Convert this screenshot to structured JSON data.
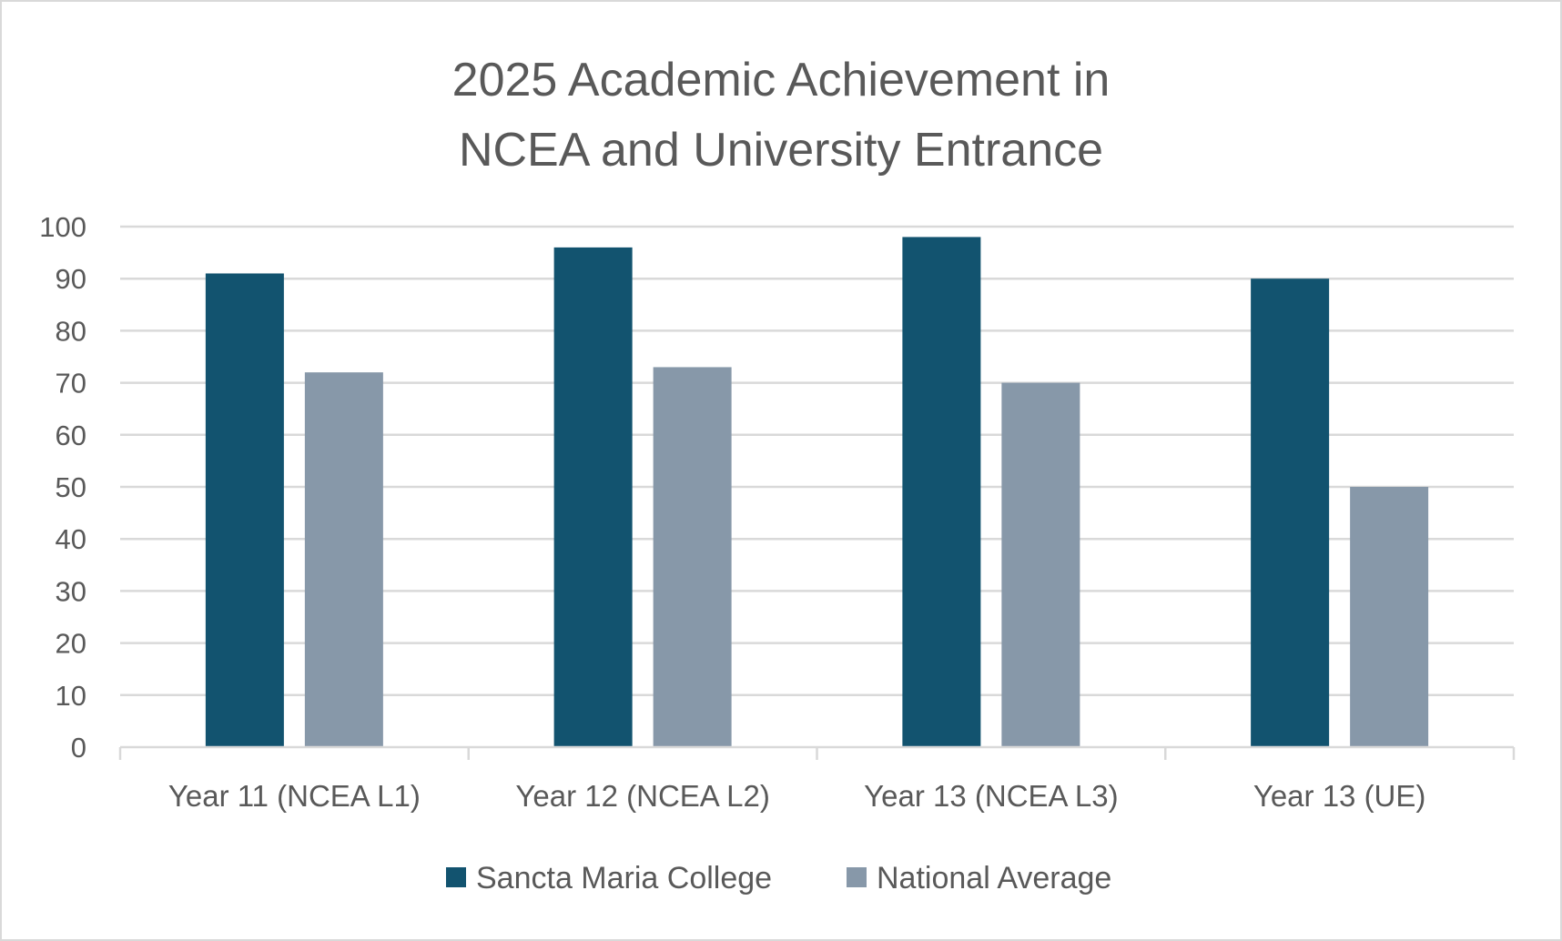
{
  "chart_data": {
    "type": "bar",
    "title": [
      "2025 Academic Achievement in",
      "NCEA and University Entrance"
    ],
    "xlabel": "",
    "ylabel": "",
    "ylim": [
      0,
      100
    ],
    "ytick_step": 10,
    "grid": true,
    "legend_position": "bottom",
    "categories": [
      "Year 11 (NCEA L1)",
      "Year 12 (NCEA L2)",
      "Year 13 (NCEA L3)",
      "Year 13 (UE)"
    ],
    "series": [
      {
        "name": "Sancta Maria College",
        "color": "#12536f",
        "values": [
          91,
          96,
          98,
          90
        ]
      },
      {
        "name": "National Average",
        "color": "#8798a9",
        "values": [
          72,
          73,
          70,
          50
        ]
      }
    ]
  }
}
